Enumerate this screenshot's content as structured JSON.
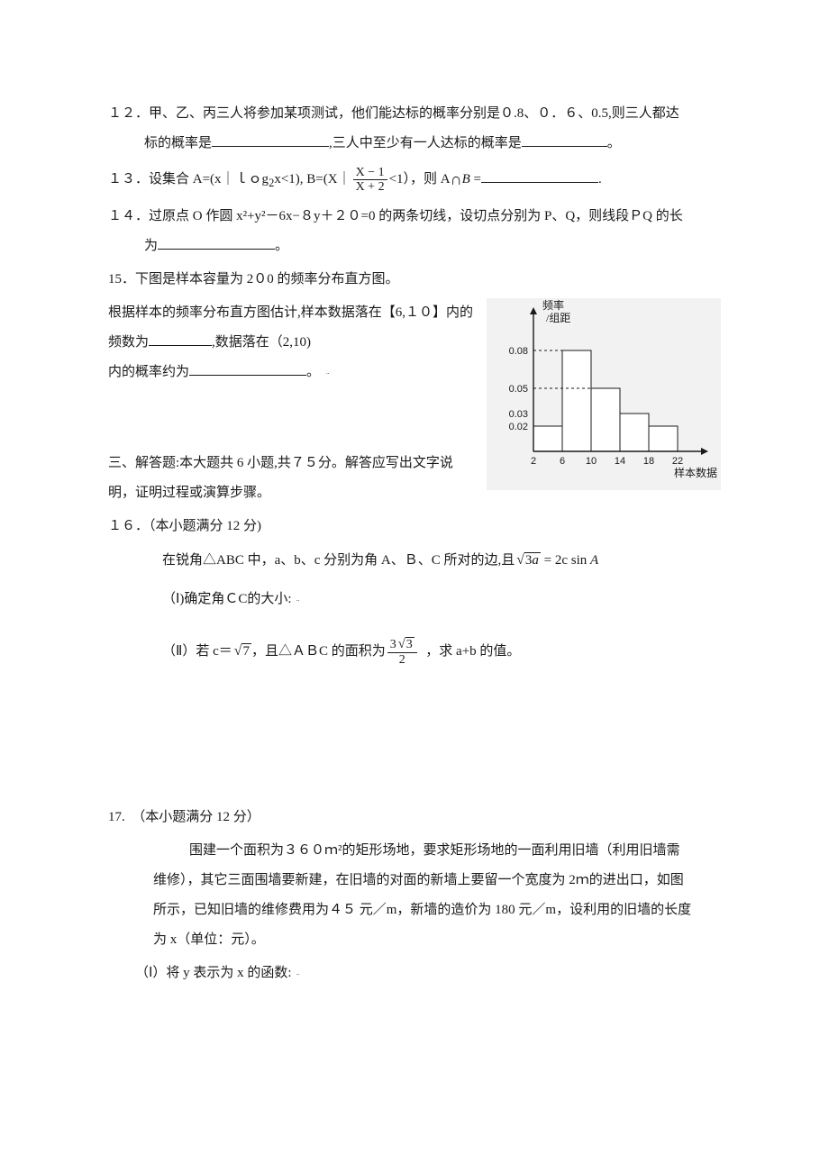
{
  "p12": {
    "num": "１２．",
    "line1": "甲、乙、丙三人将参加某项测试，他们能达标的概率分别是０.8、０．６、0.5,则三人都达",
    "line2_a": "标的概率是",
    "line2_b": ",三人中至少有一人达标的概率是",
    "line2_c": "。"
  },
  "p13": {
    "num": "１３．",
    "a": "设集合 A=(x｜ｌｏg",
    "sub": "2",
    "b": "x<1),    B=(X｜",
    "frac_num": "X − 1",
    "frac_den": "X + 2",
    "c": "<1），则 A",
    "d": " =",
    "e": "."
  },
  "p14": {
    "num": "１４．",
    "line1": "过原点 O 作圆 x²+y²－6x−８y＋２０=0 的两条切线，设切点分别为 P、Q，则线段ＰQ 的长",
    "line2_a": "为",
    "line2_b": "。"
  },
  "p15": {
    "num": "15．",
    "line1": "下图是样本容量为 2０0 的频率分布直方图。",
    "line2_a": "根据样本的频率分布直方图估计,样本数据落在【6,１０】内的频数为",
    "line2_b": ",数据落在（2,10)",
    "line3_a": "内的概率约为",
    "line3_b": "。"
  },
  "chart": {
    "y_title_top": "频率",
    "y_title_bottom": "组距",
    "y_ticks": [
      "0.05",
      "0.08",
      "0.03",
      "0.02"
    ],
    "x_ticks": [
      "2",
      "6",
      "10",
      "14",
      "18",
      "22"
    ],
    "x_label": "样本数据",
    "bg": "#f2f2f2",
    "axis_color": "#1a1a1a",
    "bar_fill": "#ffffff",
    "bar_stroke": "#1a1a1a",
    "dash_color": "#1a1a1a",
    "font_color": "#1a1a1a",
    "tick_fontsize": 11,
    "label_fontsize": 12,
    "bars": [
      {
        "x": 2,
        "w": 4,
        "h_rel": 0.02
      },
      {
        "x": 6,
        "w": 4,
        "h_rel": 0.08
      },
      {
        "x": 10,
        "w": 4,
        "h_rel": 0.05
      },
      {
        "x": 14,
        "w": 4,
        "h_rel": 0.03
      },
      {
        "x": 18,
        "w": 4,
        "h_rel": 0.02
      }
    ],
    "y_guides": [
      0.05,
      0.08
    ]
  },
  "section3": "三、解答题:本大题共 6 小题,共７５分。解答应写出文字说明，证明过程或演算步骤。",
  "p16": {
    "num": "１６．",
    "title": "（本小题满分 12 分)",
    "line1": "在锐角△ABC 中，a、b、c 分别为角 A、Ｂ、C 所对的边,且",
    "eq_lhs_coef": "3",
    "eq_lhs_a": "a",
    "eq_eq": " = 2c sin ",
    "eq_A": "A",
    "part1": "（Ⅰ)确定角ＣC的大小:",
    "part2_a": "（Ⅱ）若 c＝",
    "part2_root": "7",
    "part2_b": "，且△ＡＢC 的面积为",
    "area_num_coef": "3",
    "area_num_root": "3",
    "area_den": "2",
    "part2_c": "，求 a+b 的值。"
  },
  "p17": {
    "num": "17.",
    "title": "（本小题满分 12 分）",
    "line1": "围建一个面积为３６０ｍ²的矩形场地，要求矩形场地的一面利用旧墙（利用旧墙需",
    "line2": "维修），其它三面围墙要新建，在旧墙的对面的新墙上要留一个宽度为 2ｍ的进出口，如图",
    "line3": "所示，已知旧墙的维修费用为４５ 元／m，新墙的造价为 180 元／m，设利用的旧墙的长度",
    "line4": "为 x（单位：元）。",
    "part1": "（Ⅰ）将 y 表示为 x 的函数:"
  }
}
